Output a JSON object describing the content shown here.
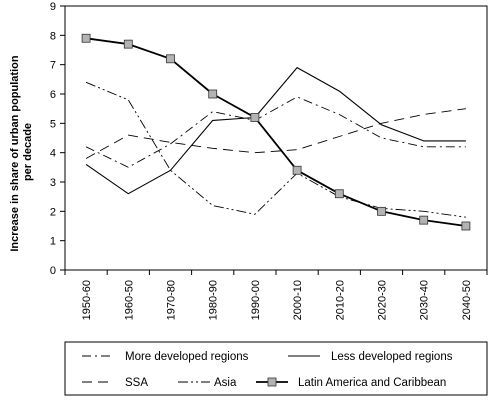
{
  "chart_data": {
    "type": "line",
    "xlabel": "",
    "ylabel_lines": [
      "Increase in share of urban population",
      "per decade"
    ],
    "ylim": [
      0,
      9
    ],
    "yticks": [
      "0",
      "1",
      "2",
      "3",
      "4",
      "5",
      "6",
      "7",
      "8",
      "9"
    ],
    "grid": false,
    "legend_position": "bottom",
    "categories": [
      "1950-60",
      "1960-50",
      "1970-80",
      "1980-90",
      "1990-00",
      "2000-10",
      "2010-20",
      "2020-30",
      "2030-40",
      "2040-50"
    ],
    "series": [
      {
        "name": "More developed regions",
        "style": "dash-dot",
        "color": "#000000",
        "values": [
          4.2,
          3.5,
          4.3,
          5.4,
          5.1,
          5.9,
          5.3,
          4.5,
          4.2,
          4.2
        ]
      },
      {
        "name": "Less developed regions",
        "style": "solid-thin",
        "color": "#000000",
        "values": [
          3.6,
          2.6,
          3.4,
          5.1,
          5.2,
          6.9,
          6.1,
          4.95,
          4.4,
          4.4
        ]
      },
      {
        "name": "SSA",
        "style": "long-dash",
        "color": "#000000",
        "values": [
          3.8,
          4.6,
          4.35,
          4.15,
          4.0,
          4.1,
          4.55,
          5.0,
          5.3,
          5.5
        ]
      },
      {
        "name": "Asia",
        "style": "dash-dot-dot",
        "color": "#000000",
        "values": [
          6.4,
          5.8,
          3.4,
          2.2,
          1.9,
          3.3,
          2.5,
          2.1,
          2.0,
          1.8
        ]
      },
      {
        "name": "Latin America and Caribbean",
        "style": "solid-thick-square",
        "color": "#000000",
        "marker_fill": "#b3b3b3",
        "values": [
          7.9,
          7.7,
          7.2,
          6.0,
          5.2,
          3.4,
          2.6,
          2.0,
          1.7,
          1.5
        ]
      }
    ],
    "legend": {
      "row1": [
        "More developed regions",
        "Less developed regions"
      ],
      "row2": [
        "SSA",
        "Asia",
        "Latin America and Caribbean"
      ]
    }
  }
}
